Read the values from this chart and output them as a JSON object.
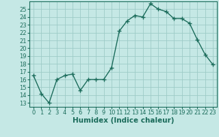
{
  "x": [
    0,
    1,
    2,
    3,
    4,
    5,
    6,
    7,
    8,
    9,
    10,
    11,
    12,
    13,
    14,
    15,
    16,
    17,
    18,
    19,
    20,
    21,
    22,
    23
  ],
  "y": [
    16.5,
    14.2,
    13.0,
    16.0,
    16.5,
    16.7,
    14.6,
    16.0,
    16.0,
    16.0,
    17.5,
    22.2,
    23.5,
    24.2,
    24.0,
    25.7,
    25.0,
    24.7,
    23.8,
    23.8,
    23.2,
    21.1,
    19.2,
    17.9
  ],
  "line_color": "#1a6b5a",
  "marker": "+",
  "markersize": 4,
  "linewidth": 1.0,
  "bg_color": "#c5e8e5",
  "grid_color": "#9dcbc7",
  "xlabel": "Humidex (Indice chaleur)",
  "xlabel_fontsize": 7.5,
  "tick_fontsize": 6,
  "ylim": [
    12.5,
    26.0
  ],
  "yticks": [
    13,
    14,
    15,
    16,
    17,
    18,
    19,
    20,
    21,
    22,
    23,
    24,
    25
  ],
  "xlim": [
    -0.5,
    23.5
  ],
  "xticks": [
    0,
    1,
    2,
    3,
    4,
    5,
    6,
    7,
    8,
    9,
    10,
    11,
    12,
    13,
    14,
    15,
    16,
    17,
    18,
    19,
    20,
    21,
    22,
    23
  ]
}
